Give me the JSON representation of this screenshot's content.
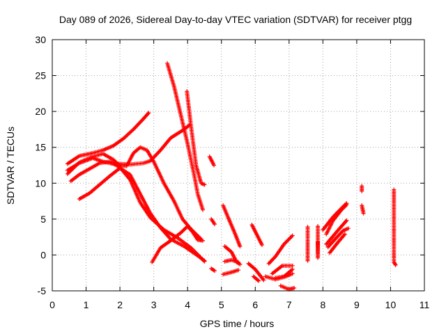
{
  "chart_data": {
    "type": "scatter",
    "title": "Day 089 of 2026, Sidereal Day-to-day VTEC variation (SDTVAR) for receiver ptgg",
    "xlabel": "GPS time / hours",
    "ylabel": "SDTVAR / TECUs",
    "xlim": [
      0,
      11
    ],
    "ylim": [
      -5,
      30
    ],
    "x_ticks": [
      "0",
      "1",
      "2",
      "3",
      "4",
      "5",
      "6",
      "7",
      "8",
      "9",
      "10",
      "11"
    ],
    "y_ticks": [
      "-5",
      "0",
      "5",
      "10",
      "15",
      "20",
      "25",
      "30"
    ],
    "grid": true,
    "marker": "+",
    "color": "#ff0000",
    "series": [
      {
        "segments": [
          [
            [
              0.45,
              12.7
            ],
            [
              0.8,
              13.8
            ],
            [
              1.2,
              14.2
            ],
            [
              1.5,
              14.6
            ],
            [
              1.8,
              15.2
            ],
            [
              2.1,
              16.2
            ],
            [
              2.4,
              17.5
            ],
            [
              2.7,
              19.0
            ],
            [
              2.85,
              19.8
            ]
          ]
        ]
      },
      {
        "segments": [
          [
            [
              0.45,
              11.8
            ],
            [
              0.8,
              12.8
            ],
            [
              1.2,
              13.5
            ],
            [
              1.5,
              13.0
            ],
            [
              1.8,
              12.7
            ],
            [
              2.0,
              12.7
            ],
            [
              2.3,
              12.6
            ],
            [
              2.7,
              12.8
            ],
            [
              2.9,
              13.1
            ],
            [
              3.2,
              14.6
            ],
            [
              3.5,
              16.3
            ],
            [
              3.9,
              17.5
            ],
            [
              4.05,
              18.1
            ]
          ]
        ]
      },
      {
        "segments": [
          [
            [
              0.45,
              11.3
            ],
            [
              0.8,
              12.9
            ],
            [
              1.2,
              13.7
            ],
            [
              1.5,
              14.1
            ],
            [
              1.8,
              13.3
            ],
            [
              2.0,
              12.4
            ],
            [
              2.2,
              12.4
            ],
            [
              2.4,
              14.2
            ],
            [
              2.6,
              15.0
            ],
            [
              2.8,
              14.6
            ],
            [
              3.0,
              13.0
            ],
            [
              3.3,
              10.0
            ],
            [
              3.6,
              7.5
            ],
            [
              3.85,
              5.0
            ],
            [
              4.1,
              3.6
            ],
            [
              4.4,
              2.2
            ]
          ]
        ]
      },
      {
        "segments": [
          [
            [
              0.55,
              10.3
            ],
            [
              0.8,
              11.2
            ],
            [
              1.1,
              12.0
            ],
            [
              1.4,
              12.8
            ],
            [
              1.7,
              13.0
            ],
            [
              2.0,
              12.2
            ],
            [
              2.3,
              10.5
            ],
            [
              2.6,
              7.3
            ],
            [
              2.9,
              5.2
            ],
            [
              3.3,
              3.5
            ],
            [
              3.7,
              2.4
            ],
            [
              4.1,
              1.0
            ],
            [
              4.5,
              -0.9
            ]
          ]
        ]
      },
      {
        "segments": [
          [
            [
              0.8,
              7.8
            ],
            [
              1.1,
              8.6
            ],
            [
              1.4,
              9.8
            ],
            [
              1.7,
              11.0
            ],
            [
              2.0,
              12.1
            ],
            [
              2.3,
              11.2
            ],
            [
              2.6,
              8.5
            ],
            [
              2.9,
              5.8
            ],
            [
              3.2,
              3.8
            ],
            [
              3.5,
              2.2
            ],
            [
              3.9,
              1.2
            ],
            [
              4.3,
              -0.1
            ],
            [
              4.5,
              -0.8
            ]
          ]
        ]
      },
      {
        "segments": [
          [
            [
              2.95,
              -1.0
            ],
            [
              3.2,
              1.0
            ],
            [
              3.5,
              2.0
            ],
            [
              3.8,
              3.1
            ],
            [
              4.0,
              4.0
            ],
            [
              4.15,
              3.2
            ],
            [
              4.3,
              2.1
            ],
            [
              4.45,
              2.0
            ]
          ]
        ]
      },
      {
        "segments": [
          [
            [
              3.4,
              26.7
            ],
            [
              3.6,
              23.5
            ],
            [
              3.8,
              19.5
            ],
            [
              4.0,
              15.5
            ],
            [
              4.2,
              11.0
            ],
            [
              4.3,
              8.5
            ],
            [
              4.45,
              6.3
            ]
          ]
        ]
      },
      {
        "segments": [
          [
            [
              3.98,
              22.8
            ],
            [
              4.1,
              18.0
            ],
            [
              4.25,
              12.5
            ],
            [
              4.4,
              10.0
            ],
            [
              4.5,
              9.8
            ]
          ]
        ]
      },
      {
        "segments": [
          [
            [
              4.65,
              13.7
            ],
            [
              4.78,
              12.5
            ]
          ],
          [
            [
              4.7,
              5.0
            ],
            [
              4.8,
              4.3
            ]
          ],
          [
            [
              4.7,
              -1.9
            ],
            [
              4.8,
              -2.2
            ]
          ],
          [
            [
              5.05,
              6.9
            ],
            [
              5.2,
              5.2
            ],
            [
              5.4,
              3.0
            ],
            [
              5.55,
              1.2
            ]
          ],
          [
            [
              5.05,
              -2.7
            ],
            [
              5.3,
              -2.4
            ],
            [
              5.5,
              -2.1
            ]
          ],
          [
            [
              5.1,
              1.2
            ],
            [
              5.3,
              0.4
            ],
            [
              5.45,
              -1.0
            ],
            [
              5.55,
              -1.3
            ]
          ],
          [
            [
              5.1,
              -0.9
            ],
            [
              5.3,
              -0.7
            ],
            [
              5.5,
              -1.0
            ]
          ],
          [
            [
              5.9,
              4.2
            ],
            [
              6.05,
              2.8
            ],
            [
              6.2,
              1.4
            ]
          ],
          [
            [
              5.8,
              -1.2
            ],
            [
              6.0,
              -2.0
            ],
            [
              6.25,
              -3.5
            ]
          ],
          [
            [
              5.95,
              -3.0
            ],
            [
              6.1,
              -3.6
            ]
          ],
          [
            [
              6.3,
              -3.0
            ],
            [
              6.6,
              -3.4
            ],
            [
              6.9,
              -3.0
            ],
            [
              7.1,
              -2.6
            ]
          ],
          [
            [
              6.5,
              -2.6
            ],
            [
              6.8,
              -1.5
            ],
            [
              7.1,
              -1.5
            ]
          ],
          [
            [
              6.4,
              -1.2
            ],
            [
              6.6,
              -0.2
            ],
            [
              6.85,
              1.5
            ],
            [
              7.1,
              2.7
            ]
          ],
          [
            [
              6.6,
              -3.2
            ],
            [
              6.85,
              -3.0
            ],
            [
              7.1,
              -2.0
            ]
          ],
          [
            [
              6.75,
              -4.3
            ],
            [
              7.0,
              -4.8
            ],
            [
              7.15,
              -4.6
            ]
          ],
          [
            [
              7.55,
              3.9
            ],
            [
              7.55,
              1.8
            ],
            [
              7.55,
              -0.8
            ]
          ],
          [
            [
              7.85,
              4.0
            ],
            [
              7.85,
              -0.4
            ],
            [
              7.85,
              1.8
            ]
          ],
          [
            [
              8.1,
              2.9
            ],
            [
              8.3,
              4.8
            ],
            [
              8.55,
              6.3
            ],
            [
              8.7,
              7.0
            ]
          ],
          [
            [
              8.0,
              3.5
            ],
            [
              8.3,
              5.3
            ],
            [
              8.55,
              6.5
            ],
            [
              8.7,
              7.2
            ]
          ],
          [
            [
              8.1,
              1.5
            ],
            [
              8.35,
              2.9
            ],
            [
              8.55,
              4.0
            ],
            [
              8.7,
              4.8
            ]
          ],
          [
            [
              8.15,
              1.1
            ],
            [
              8.4,
              2.4
            ],
            [
              8.6,
              3.4
            ],
            [
              8.75,
              3.7
            ]
          ],
          [
            [
              8.2,
              0.3
            ],
            [
              8.45,
              1.8
            ],
            [
              8.65,
              2.9
            ]
          ],
          [
            [
              9.15,
              9.6
            ],
            [
              9.15,
              8.9
            ]
          ],
          [
            [
              9.15,
              6.9
            ],
            [
              9.2,
              5.8
            ]
          ],
          [
            [
              10.1,
              9.1
            ],
            [
              10.1,
              7.3
            ],
            [
              10.1,
              1.9
            ],
            [
              10.1,
              -1.0
            ],
            [
              10.15,
              -1.4
            ]
          ]
        ]
      }
    ]
  }
}
